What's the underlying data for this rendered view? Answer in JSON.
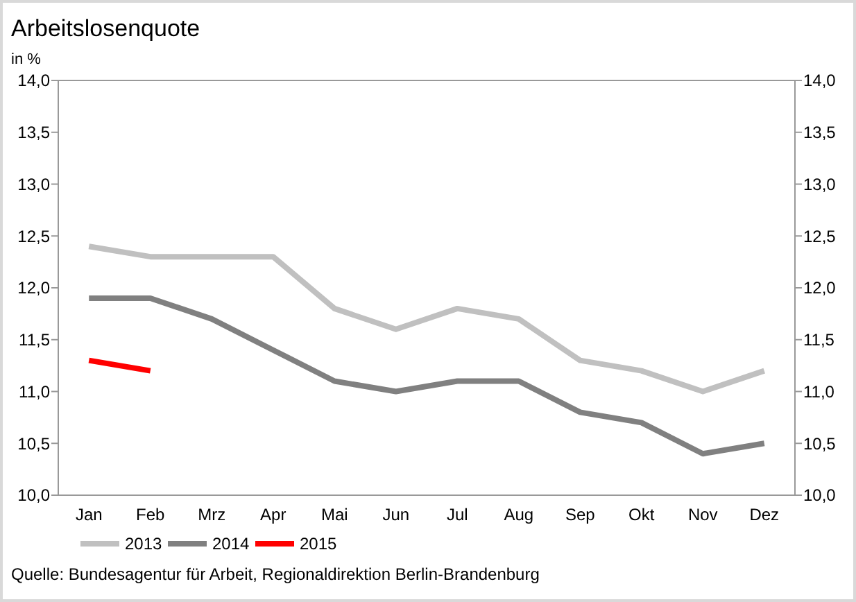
{
  "chart_data": {
    "type": "line",
    "title": "Arbeitslosenquote",
    "ylabel": "in %",
    "categories": [
      "Jan",
      "Feb",
      "Mrz",
      "Apr",
      "Mai",
      "Jun",
      "Jul",
      "Aug",
      "Sep",
      "Okt",
      "Nov",
      "Dez"
    ],
    "series": [
      {
        "name": "2013",
        "color": "#c0c0c0",
        "values": [
          12.4,
          12.3,
          12.3,
          12.3,
          11.8,
          11.6,
          11.8,
          11.7,
          11.3,
          11.2,
          11.0,
          11.2
        ]
      },
      {
        "name": "2014",
        "color": "#808080",
        "values": [
          11.9,
          11.9,
          11.7,
          11.4,
          11.1,
          11.0,
          11.1,
          11.1,
          10.8,
          10.7,
          10.4,
          10.5
        ]
      },
      {
        "name": "2015",
        "color": "#ff0000",
        "values": [
          11.3,
          11.2,
          null,
          null,
          null,
          null,
          null,
          null,
          null,
          null,
          null,
          null
        ]
      }
    ],
    "ylim": [
      10,
      14
    ],
    "yticks": [
      {
        "value": 10,
        "label": "10,0"
      },
      {
        "value": 10.5,
        "label": "10,5"
      },
      {
        "value": 11,
        "label": "11,0"
      },
      {
        "value": 11.5,
        "label": "11,5"
      },
      {
        "value": 12,
        "label": "12,0"
      },
      {
        "value": 12.5,
        "label": "12,5"
      },
      {
        "value": 13,
        "label": "13,0"
      },
      {
        "value": 13.5,
        "label": "13,5"
      },
      {
        "value": 14,
        "label": "14,0"
      }
    ],
    "y2lim": [
      10,
      14
    ],
    "y2ticks": [
      {
        "value": 10,
        "label": "10,0"
      },
      {
        "value": 10.5,
        "label": "10,5"
      },
      {
        "value": 11,
        "label": "11,0"
      },
      {
        "value": 11.5,
        "label": "11,5"
      },
      {
        "value": 12,
        "label": "12,0"
      },
      {
        "value": 12.5,
        "label": "12,5"
      },
      {
        "value": 13,
        "label": "13,0"
      },
      {
        "value": 13.5,
        "label": "13,5"
      },
      {
        "value": 14,
        "label": "14,0"
      }
    ],
    "legend": "bottom",
    "marker": "none",
    "line_style": "solid",
    "annotations": [
      "Quelle: Bundesagentur für Arbeit, Regionaldirektion Berlin-Brandenburg"
    ]
  }
}
